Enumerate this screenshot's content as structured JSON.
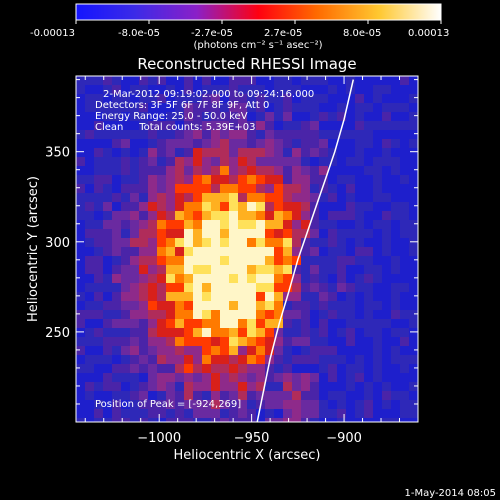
{
  "colorbar": {
    "tick_labels": [
      "-0.00013",
      "-8.0e-05",
      "-2.7e-05",
      "2.7e-05",
      "8.0e-05",
      "0.00013"
    ],
    "unit_label": "(photons cm⁻² s⁻¹ asec⁻²)",
    "colors": [
      "#1414ff",
      "#7a1cd9",
      "#c83cc8",
      "#ff0000",
      "#ff7800",
      "#ffe15a",
      "#ffffff"
    ]
  },
  "chart_data": {
    "type": "heatmap",
    "title": "Reconstructed RHESSI Image",
    "xlabel": "Heliocentric X (arcsec)",
    "ylabel": "Heliocentric Y (arcsec)",
    "xlim": [
      -1045,
      -860
    ],
    "ylim": [
      200,
      392
    ],
    "x_ticks": [
      -1000,
      -950,
      -900
    ],
    "y_ticks": [
      250,
      300,
      350
    ],
    "x_tick_labels": [
      "−1000",
      "−950",
      "−900"
    ],
    "y_tick_labels": [
      "250",
      "300",
      "350"
    ],
    "limb_curve": {
      "x": [
        -947,
        -944,
        -940,
        -935,
        -930,
        -925,
        -920,
        -915,
        -910,
        -905,
        -900,
        -895
      ],
      "y": [
        200,
        215,
        235,
        255,
        272,
        290,
        305,
        320,
        335,
        350,
        368,
        390
      ]
    },
    "peak": [
      -924,
      269
    ],
    "annotations": {
      "time_range": "2-Mar-2012 09:19:02.000 to 09:24:16.000",
      "detectors": "Detectors: 3F 5F 6F 7F 8F 9F, Att 0",
      "energy": "Energy Range: 25.0 - 50.0 keV",
      "clean": "Clean     Total counts: 5.39E+03",
      "peak": "Position of Peak = [-924,269]"
    },
    "colors": {
      "background": "#3c1a8c",
      "bright": "#ffe15a",
      "hot": "#ff6400",
      "limb": "#ffffff"
    }
  },
  "footer": {
    "timestamp": "1-May-2014 08:05"
  }
}
